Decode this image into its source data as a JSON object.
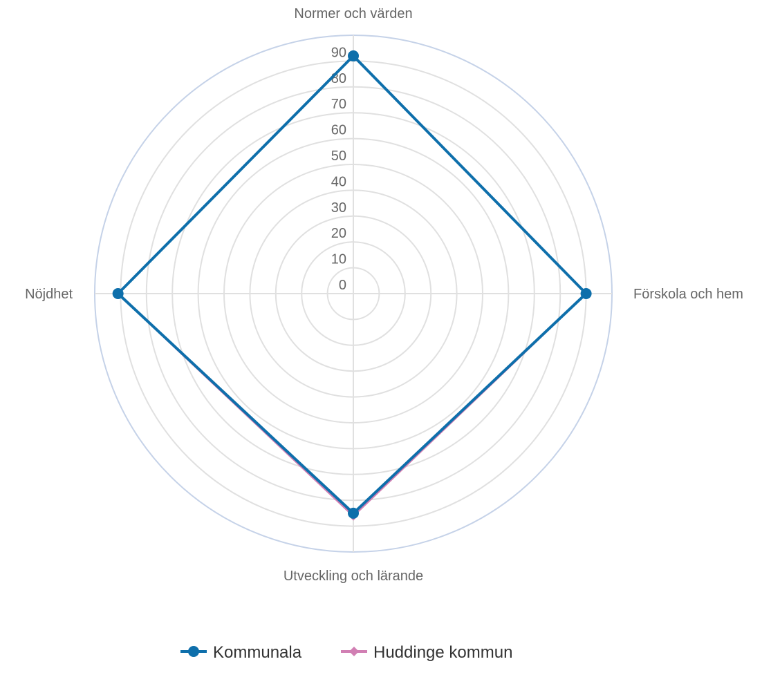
{
  "chart_data": {
    "type": "radar",
    "axes": [
      "Normer och värden",
      "Förskola och hem",
      "Utveckling och lärande",
      "Nöjdhet"
    ],
    "r_ticks": [
      0,
      10,
      20,
      30,
      40,
      50,
      60,
      70,
      80,
      90
    ],
    "r_range": [
      0,
      100
    ],
    "series": [
      {
        "name": "Kommunala",
        "values": [
          92,
          90,
          85,
          91
        ],
        "color": "#0e6fab",
        "marker": "circle"
      },
      {
        "name": "Huddinge kommun",
        "values": [
          92,
          90,
          86,
          91
        ],
        "color": "#d17fb3",
        "marker": "diamond"
      }
    ],
    "gridline_color": "#e0e0e0",
    "outer_ring_color": "#c5d2e8",
    "legend": "bottom-center"
  }
}
